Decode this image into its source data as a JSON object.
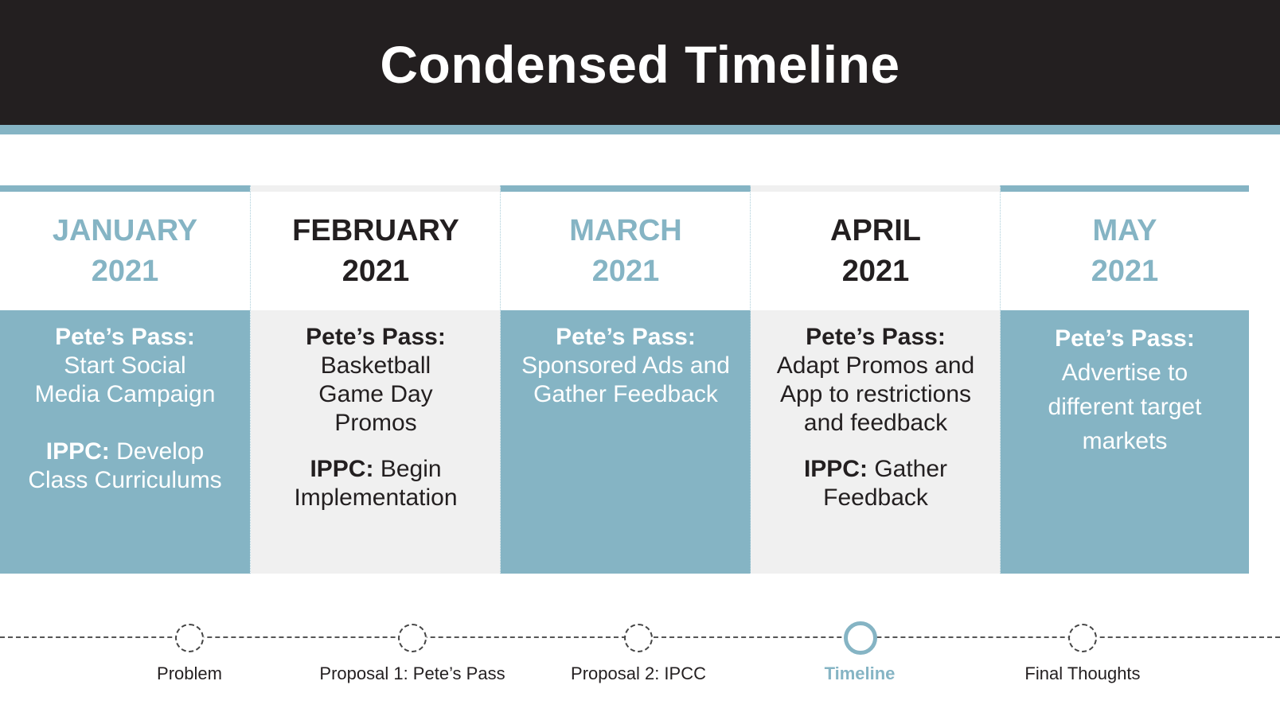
{
  "header": {
    "title": "Condensed Timeline"
  },
  "columns": [
    {
      "month": "JANUARY",
      "year": "2021",
      "pp_label": "Pete’s Pass:",
      "pp_text": "Start Social Media Campaign",
      "ippc_label": "IPPC:",
      "ippc_text": "Develop Class Curriculums"
    },
    {
      "month": "FEBRUARY",
      "year": "2021",
      "pp_label": "Pete’s Pass:",
      "pp_text": "Basketball Game Day Promos",
      "ippc_label": "IPPC:",
      "ippc_text": "Begin Implementation"
    },
    {
      "month": "MARCH",
      "year": "2021",
      "pp_label": "Pete’s Pass:",
      "pp_text": "Sponsored Ads and Gather Feedback"
    },
    {
      "month": "APRIL",
      "year": "2021",
      "pp_label": "Pete’s Pass:",
      "pp_text": "Adapt Promos and App to restrictions and feedback",
      "ippc_label": "IPPC:",
      "ippc_text": "Gather Feedback"
    },
    {
      "month": "MAY",
      "year": "2021",
      "pp_label": "Pete’s Pass:",
      "pp_text": "Advertise to different target markets"
    }
  ],
  "nav": {
    "items": [
      {
        "label": "Problem"
      },
      {
        "label": "Proposal 1: Pete’s Pass"
      },
      {
        "label": "Proposal 2: IPCC"
      },
      {
        "label": "Timeline"
      },
      {
        "label": "Final Thoughts"
      }
    ],
    "active": "Timeline"
  },
  "colors": {
    "accent": "#85b4c4",
    "dark": "#231f20",
    "panel_gray": "#f0f0f0"
  }
}
